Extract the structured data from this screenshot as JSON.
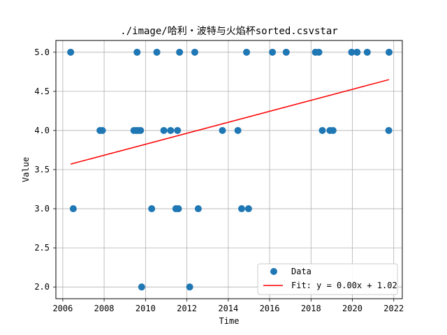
{
  "chart_data": {
    "type": "scatter",
    "title": "./image/哈利・波特与火焰杯sorted.csvstar",
    "xlabel": "Time",
    "ylabel": "Value",
    "xlim": [
      "2005-09-01",
      "2022-06-01"
    ],
    "ylim": [
      1.85,
      5.15
    ],
    "x_ticks": [
      "2006",
      "2008",
      "2010",
      "2012",
      "2014",
      "2016",
      "2018",
      "2020",
      "2022"
    ],
    "y_ticks": [
      "2.0",
      "2.5",
      "3.0",
      "3.5",
      "4.0",
      "4.5",
      "5.0"
    ],
    "grid": true,
    "legend_position": "lower-right",
    "series": [
      {
        "name": "Data",
        "type": "scatter",
        "color": "#1f77b4",
        "points": [
          {
            "x": "2006-05-20",
            "y": 5
          },
          {
            "x": "2006-07-05",
            "y": 3
          },
          {
            "x": "2007-10-20",
            "y": 4
          },
          {
            "x": "2007-12-01",
            "y": 4
          },
          {
            "x": "2009-06-10",
            "y": 4
          },
          {
            "x": "2009-07-20",
            "y": 4
          },
          {
            "x": "2009-08-05",
            "y": 5
          },
          {
            "x": "2009-08-25",
            "y": 4
          },
          {
            "x": "2009-10-05",
            "y": 4
          },
          {
            "x": "2009-10-25",
            "y": 2
          },
          {
            "x": "2010-04-20",
            "y": 3
          },
          {
            "x": "2010-07-20",
            "y": 5
          },
          {
            "x": "2010-11-20",
            "y": 4
          },
          {
            "x": "2011-03-20",
            "y": 4
          },
          {
            "x": "2011-06-20",
            "y": 3
          },
          {
            "x": "2011-07-20",
            "y": 4
          },
          {
            "x": "2011-08-05",
            "y": 3
          },
          {
            "x": "2011-08-25",
            "y": 5
          },
          {
            "x": "2012-02-20",
            "y": 2
          },
          {
            "x": "2012-05-20",
            "y": 5
          },
          {
            "x": "2012-07-20",
            "y": 3
          },
          {
            "x": "2013-09-20",
            "y": 4
          },
          {
            "x": "2014-06-20",
            "y": 4
          },
          {
            "x": "2014-08-25",
            "y": 3
          },
          {
            "x": "2014-11-20",
            "y": 5
          },
          {
            "x": "2014-12-25",
            "y": 3
          },
          {
            "x": "2016-02-20",
            "y": 5
          },
          {
            "x": "2016-10-20",
            "y": 5
          },
          {
            "x": "2018-03-20",
            "y": 5
          },
          {
            "x": "2018-05-20",
            "y": 5
          },
          {
            "x": "2018-07-20",
            "y": 4
          },
          {
            "x": "2018-12-01",
            "y": 4
          },
          {
            "x": "2019-01-25",
            "y": 4
          },
          {
            "x": "2019-12-20",
            "y": 5
          },
          {
            "x": "2020-03-25",
            "y": 5
          },
          {
            "x": "2020-09-20",
            "y": 5
          },
          {
            "x": "2021-10-05",
            "y": 4
          },
          {
            "x": "2021-10-10",
            "y": 5
          }
        ]
      },
      {
        "name": "Fit: y = 0.00x + 1.02",
        "type": "line",
        "color": "#ff0000",
        "points": [
          {
            "x": "2006-05-20",
            "y": 3.57
          },
          {
            "x": "2021-10-10",
            "y": 4.65
          }
        ]
      }
    ]
  }
}
